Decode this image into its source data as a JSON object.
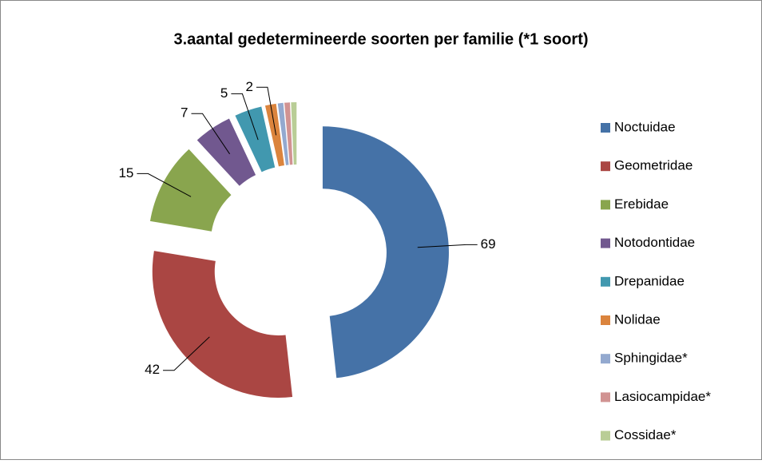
{
  "chart_data": {
    "type": "donut",
    "title": "3.aantal gedetermineerde soorten per familie (*1 soort)",
    "categories": [
      "Noctuidae",
      "Geometridae",
      "Erebidae",
      "Notodontidae",
      "Drepanidae",
      "Nolidae",
      "Sphingidae*",
      "Lasiocampidae*",
      "Cossidae*"
    ],
    "values": [
      69,
      42,
      15,
      7,
      5,
      2,
      1,
      1,
      1
    ],
    "value_labels": [
      "69",
      "42",
      "15",
      "7",
      "5",
      "2",
      null,
      null,
      null
    ],
    "colors": [
      "#4572a7",
      "#aa4643",
      "#89a54e",
      "#71588f",
      "#4198af",
      "#db843d",
      "#93a9cf",
      "#d19392",
      "#b9cd96"
    ],
    "legend": "right"
  }
}
